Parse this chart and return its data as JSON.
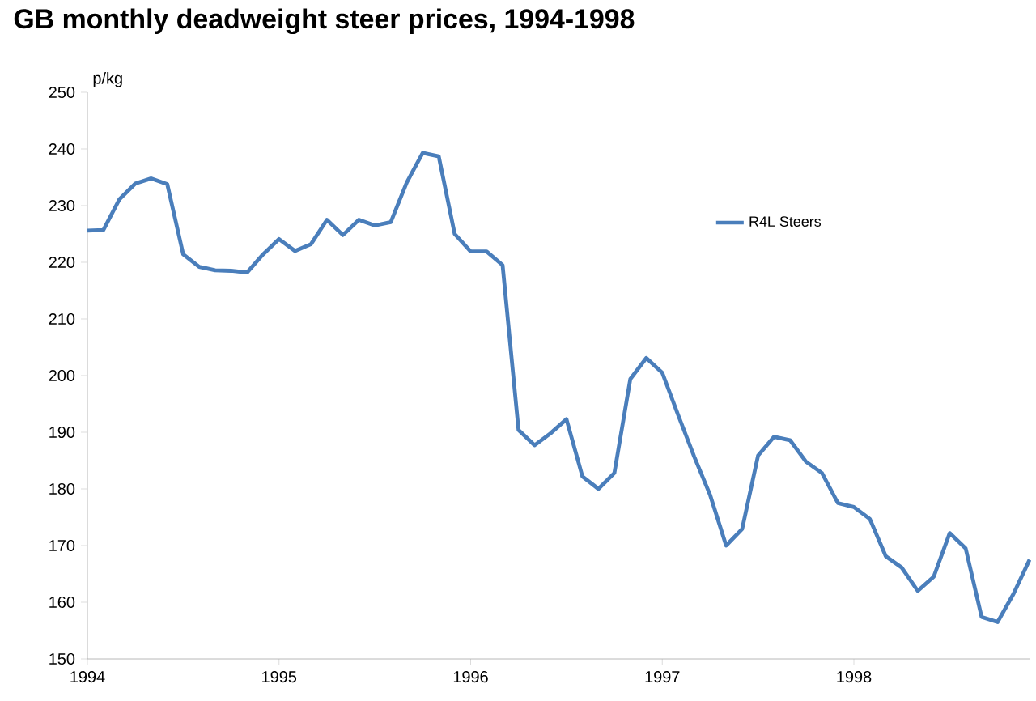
{
  "chart_data": {
    "type": "line",
    "title": "GB monthly deadweight steer prices, 1994-1998",
    "ylabel": "p/kg",
    "x": [
      "1994-01",
      "1994-02",
      "1994-03",
      "1994-04",
      "1994-05",
      "1994-06",
      "1994-07",
      "1994-08",
      "1994-09",
      "1994-10",
      "1994-11",
      "1994-12",
      "1995-01",
      "1995-02",
      "1995-03",
      "1995-04",
      "1995-05",
      "1995-06",
      "1995-07",
      "1995-08",
      "1995-09",
      "1995-10",
      "1995-11",
      "1995-12",
      "1996-01",
      "1996-02",
      "1996-03",
      "1996-04",
      "1996-05",
      "1996-06",
      "1996-07",
      "1996-08",
      "1996-09",
      "1996-10",
      "1996-11",
      "1996-12",
      "1997-01",
      "1997-02",
      "1997-03",
      "1997-04",
      "1997-05",
      "1997-06",
      "1997-07",
      "1997-08",
      "1997-09",
      "1997-10",
      "1997-11",
      "1997-12",
      "1998-01",
      "1998-02",
      "1998-03",
      "1998-04",
      "1998-05",
      "1998-06",
      "1998-07",
      "1998-08",
      "1998-09",
      "1998-10",
      "1998-11",
      "1998-12"
    ],
    "series": [
      {
        "name": "R4L Steers",
        "color": "#4a7ebb",
        "values": [
          225.6,
          225.7,
          231.1,
          233.9,
          234.8,
          233.8,
          221.4,
          219.2,
          218.6,
          218.5,
          218.2,
          221.4,
          224.1,
          222.0,
          223.2,
          227.5,
          224.8,
          227.5,
          226.5,
          227.1,
          234.1,
          239.3,
          238.7,
          225.0,
          221.9,
          221.9,
          219.5,
          190.4,
          187.7,
          189.8,
          192.3,
          182.2,
          180.0,
          182.8,
          199.4,
          203.1,
          200.5,
          193.0,
          185.7,
          178.9,
          170.0,
          172.9,
          185.9,
          189.2,
          188.6,
          184.8,
          182.8,
          177.5,
          176.8,
          174.7,
          168.1,
          166.1,
          162.0,
          164.5,
          172.2,
          169.5,
          157.4,
          156.5,
          161.5,
          167.5
        ]
      }
    ],
    "xlim": [
      "1994-01",
      "1998-12"
    ],
    "xticks": [
      "1994",
      "1995",
      "1996",
      "1997",
      "1998"
    ],
    "ylim": [
      150,
      250
    ],
    "yticks": [
      150,
      160,
      170,
      180,
      190,
      200,
      210,
      220,
      230,
      240,
      250
    ],
    "grid": false,
    "legend": "right",
    "marker": "none",
    "line_style": "solid"
  }
}
